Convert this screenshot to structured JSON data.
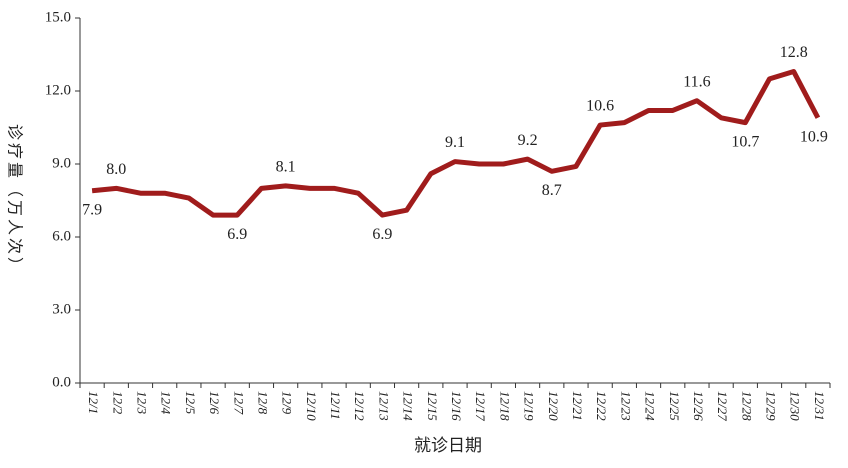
{
  "chart_data": {
    "type": "line",
    "x_label": "就诊日期",
    "y_label": "诊疗量（万人次）",
    "categories": [
      "12/1",
      "12/2",
      "12/3",
      "12/4",
      "12/5",
      "12/6",
      "12/7",
      "12/8",
      "12/9",
      "12/10",
      "12/11",
      "12/12",
      "12/13",
      "12/14",
      "12/15",
      "12/16",
      "12/17",
      "12/18",
      "12/19",
      "12/20",
      "12/21",
      "12/22",
      "12/23",
      "12/24",
      "12/25",
      "12/26",
      "12/27",
      "12/28",
      "12/29",
      "12/30",
      "12/31"
    ],
    "series": [
      {
        "color": "#a01c1c",
        "values": [
          7.9,
          8.0,
          7.8,
          7.8,
          7.6,
          6.9,
          6.9,
          8.0,
          8.1,
          8.0,
          8.0,
          7.8,
          6.9,
          7.1,
          8.6,
          9.1,
          9.0,
          9.0,
          9.2,
          8.7,
          8.9,
          10.6,
          10.7,
          11.2,
          11.2,
          11.6,
          10.9,
          10.7,
          12.5,
          12.8,
          10.9
        ],
        "value_labels": [
          "7.9",
          "8.0",
          null,
          null,
          null,
          null,
          "6.9",
          null,
          "8.1",
          null,
          null,
          null,
          "6.9",
          null,
          null,
          "9.1",
          null,
          null,
          "9.2",
          "8.7",
          null,
          "10.6",
          null,
          null,
          null,
          "11.6",
          null,
          "10.7",
          null,
          "12.8",
          "10.9"
        ]
      }
    ],
    "ylim": [
      0,
      15
    ],
    "yticks": [
      {
        "value": 0,
        "label": "0.0"
      },
      {
        "value": 3,
        "label": "3.0"
      },
      {
        "value": 6,
        "label": "6.0"
      },
      {
        "value": 9,
        "label": "9.0"
      },
      {
        "value": 12,
        "label": "12.0"
      },
      {
        "value": 15,
        "label": "15.0"
      }
    ],
    "grid": false
  }
}
